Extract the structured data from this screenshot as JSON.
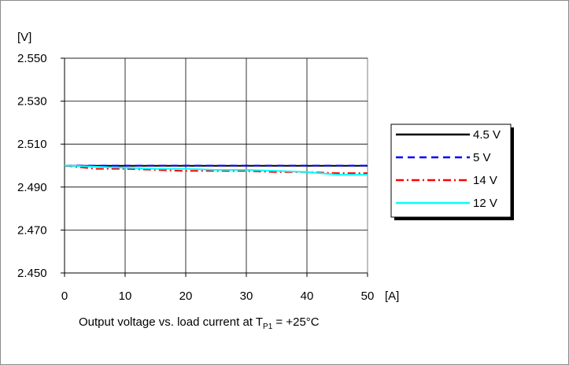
{
  "chart_data": {
    "type": "line",
    "ylabel": "[V]",
    "xlabel": "[A]",
    "x_ticks": [
      "0",
      "10",
      "20",
      "30",
      "40",
      "50"
    ],
    "y_ticks": [
      "2.450",
      "2.470",
      "2.490",
      "2.510",
      "2.530",
      "2.550"
    ],
    "xlim": [
      0,
      50
    ],
    "ylim": [
      2.45,
      2.55
    ],
    "grid": true,
    "legend_position": "right",
    "caption": {
      "prefix": "Output voltage vs. load current at T",
      "subscript": "P1",
      "suffix": " = +25°C"
    },
    "series": [
      {
        "name": "4.5 V",
        "color": "#000000",
        "dash": "solid",
        "x": [
          0,
          5,
          10,
          15,
          20,
          25,
          30,
          35,
          40,
          45,
          50
        ],
        "y": [
          2.4999,
          2.4999,
          2.4999,
          2.4999,
          2.4999,
          2.4999,
          2.4999,
          2.4999,
          2.4999,
          2.4999,
          2.4999
        ]
      },
      {
        "name": "5 V",
        "color": "#0000ff",
        "dash": "dash",
        "x": [
          0,
          5,
          10,
          15,
          20,
          25,
          30,
          35,
          40,
          45,
          50
        ],
        "y": [
          2.5,
          2.5,
          2.5,
          2.5,
          2.5,
          2.5,
          2.5,
          2.5,
          2.5,
          2.5,
          2.5
        ]
      },
      {
        "name": "14 V",
        "color": "#ff0000",
        "dash": "dashdot",
        "x": [
          0,
          5,
          10,
          15,
          20,
          25,
          30,
          35,
          40,
          45,
          50
        ],
        "y": [
          2.5,
          2.4985,
          2.4985,
          2.498,
          2.4975,
          2.4975,
          2.4975,
          2.497,
          2.497,
          2.4965,
          2.4965
        ]
      },
      {
        "name": "12 V",
        "color": "#00ffff",
        "dash": "solid",
        "x": [
          0,
          5,
          10,
          15,
          20,
          25,
          30,
          35,
          40,
          45,
          50
        ],
        "y": [
          2.5,
          2.4995,
          2.499,
          2.4985,
          2.4985,
          2.498,
          2.498,
          2.4975,
          2.497,
          2.4958,
          2.4958
        ]
      }
    ]
  }
}
